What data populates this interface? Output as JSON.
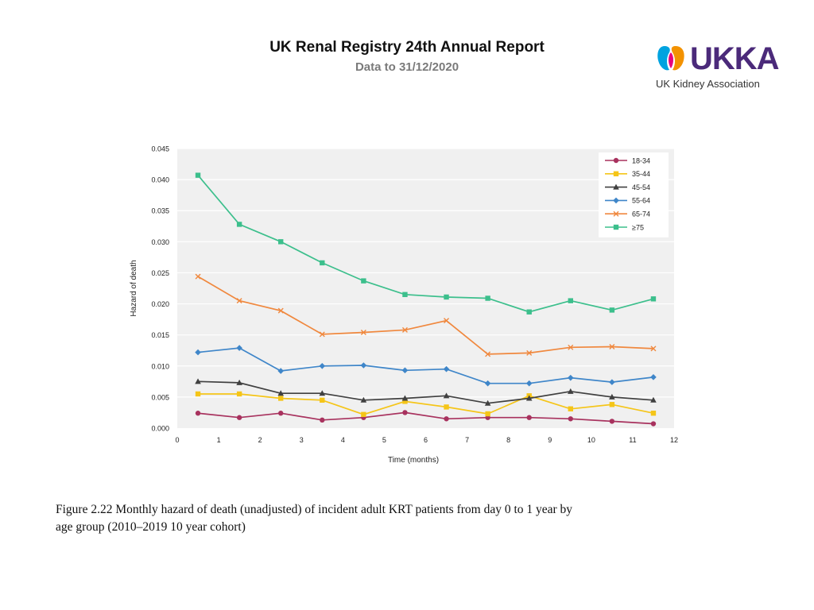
{
  "header": {
    "title": "UK Renal Registry 24th Annual Report",
    "subtitle": "Data to 31/12/2020"
  },
  "logo": {
    "wordmark": "UKKA",
    "tagline": "UK Kidney Association",
    "colors": {
      "purple": "#4b2a7a",
      "orange": "#f39200",
      "blue": "#00a3e0",
      "pink": "#e6007e"
    }
  },
  "caption": {
    "line1": "Figure 2.22 Monthly hazard of death (unadjusted) of incident adult KRT patients from day 0 to 1 year by",
    "line2": "age group (2010–2019 10 year cohort)"
  },
  "chart_data": {
    "type": "line",
    "title": "",
    "xlabel": "Time (months)",
    "ylabel": "Hazard of death",
    "xlim": [
      0,
      12
    ],
    "ylim": [
      0,
      0.045
    ],
    "xticks": [
      "0",
      "1",
      "2",
      "3",
      "4",
      "5",
      "6",
      "7",
      "8",
      "9",
      "10",
      "11",
      "12"
    ],
    "yticks": [
      "0.000",
      "0.005",
      "0.010",
      "0.015",
      "0.020",
      "0.025",
      "0.030",
      "0.035",
      "0.040",
      "0.045"
    ],
    "grid": true,
    "legend_position": "top-right",
    "x": [
      0.5,
      1.5,
      2.5,
      3.5,
      4.5,
      5.5,
      6.5,
      7.5,
      8.5,
      9.5,
      10.5,
      11.5
    ],
    "series": [
      {
        "name": "18-34",
        "color": "#a8325e",
        "marker": "circle",
        "values": [
          0.0024,
          0.0017,
          0.0024,
          0.0013,
          0.0017,
          0.0025,
          0.0015,
          0.0017,
          0.0017,
          0.0015,
          0.0011,
          0.0007
        ]
      },
      {
        "name": "35-44",
        "color": "#f5c518",
        "marker": "square",
        "values": [
          0.0055,
          0.0055,
          0.0048,
          0.0045,
          0.0022,
          0.0043,
          0.0034,
          0.0023,
          0.0052,
          0.0031,
          0.0038,
          0.0024
        ]
      },
      {
        "name": "45-54",
        "color": "#404040",
        "marker": "triangle",
        "values": [
          0.0075,
          0.0073,
          0.0056,
          0.0056,
          0.0045,
          0.0048,
          0.0052,
          0.004,
          0.0048,
          0.0059,
          0.005,
          0.0045
        ]
      },
      {
        "name": "55-64",
        "color": "#3f86c9",
        "marker": "diamond",
        "values": [
          0.0122,
          0.0129,
          0.0092,
          0.01,
          0.0101,
          0.0093,
          0.0095,
          0.0072,
          0.0072,
          0.0081,
          0.0074,
          0.0082
        ]
      },
      {
        "name": "65-74",
        "color": "#f0883e",
        "marker": "x",
        "values": [
          0.0244,
          0.0205,
          0.0189,
          0.0151,
          0.0154,
          0.0158,
          0.0173,
          0.0119,
          0.0121,
          0.013,
          0.0131,
          0.0128
        ]
      },
      {
        "name": "≥75",
        "color": "#3cbf8c",
        "marker": "square",
        "values": [
          0.0407,
          0.0328,
          0.03,
          0.0266,
          0.0237,
          0.0215,
          0.0211,
          0.0209,
          0.0187,
          0.0205,
          0.019,
          0.0208
        ]
      }
    ]
  }
}
